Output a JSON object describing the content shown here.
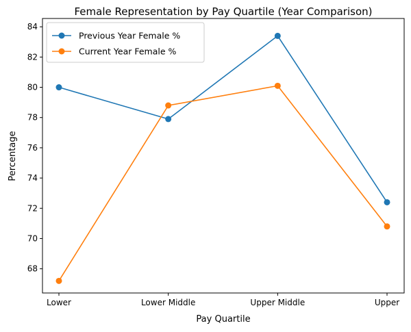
{
  "chart_data": {
    "type": "line",
    "title": "Female Representation by Pay Quartile (Year Comparison)",
    "xlabel": "Pay Quartile",
    "ylabel": "Percentage",
    "categories": [
      "Lower",
      "Lower Middle",
      "Upper Middle",
      "Upper"
    ],
    "ylim": [
      66.4,
      84.55
    ],
    "yticks": [
      68,
      70,
      72,
      74,
      76,
      78,
      80,
      82,
      84
    ],
    "grid": false,
    "legend": "top-left",
    "series": [
      {
        "name": "Previous Year Female %",
        "color": "#1f77b4",
        "values": [
          80.0,
          77.9,
          83.4,
          72.4
        ]
      },
      {
        "name": "Current Year Female %",
        "color": "#ff7f0e",
        "values": [
          67.2,
          78.8,
          80.1,
          70.8
        ]
      }
    ]
  }
}
